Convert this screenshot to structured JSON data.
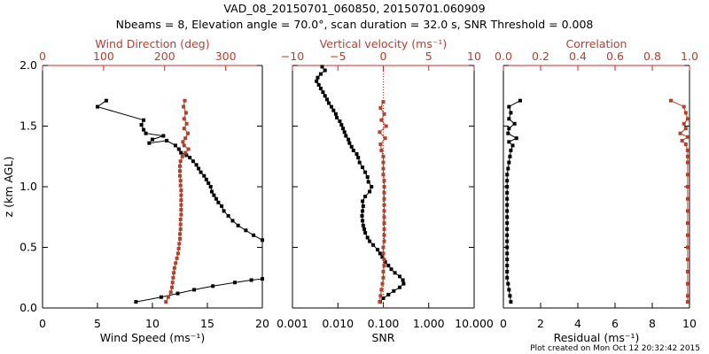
{
  "title_line1": "VAD_08_20150701_060850, 20150701.060909",
  "title_line2": "Nbeams = 8, Elevation angle = 70.0°, scan duration = 32.0 s, SNR Threshold = 0.008",
  "footer": "Plot created on Mon Oct 12 20:32:42 2015",
  "colors": {
    "primary": "#000000",
    "secondary": "#b5402a",
    "axis_top": "#e02020"
  },
  "chart_data": [
    {
      "type": "scatter",
      "panel": "wind",
      "ylabel": "z (km AGL)",
      "ylim": [
        0,
        2
      ],
      "yticks": [
        "0.0",
        "0.5",
        "1.0",
        "1.5",
        "2.0"
      ],
      "xlabel": "Wind Speed (ms⁻¹)",
      "xlim": [
        0,
        20
      ],
      "xticks": [
        "0",
        "5",
        "10",
        "15",
        "20"
      ],
      "x2label": "Wind Direction (deg)",
      "x2lim": [
        0,
        360
      ],
      "x2ticks": [
        "0",
        "100",
        "200",
        "300"
      ],
      "series": [
        {
          "role": "speed",
          "points": [
            [
              8.5,
              0.05
            ],
            [
              10.8,
              0.09
            ],
            [
              12.3,
              0.12
            ],
            [
              13.8,
              0.15
            ],
            [
              15.5,
              0.18
            ],
            [
              17.5,
              0.21
            ],
            [
              19.0,
              0.23
            ],
            [
              20,
              0.24
            ],
            [
              20,
              0.56
            ],
            [
              19.2,
              0.6
            ],
            [
              18.5,
              0.64
            ],
            [
              17.8,
              0.68
            ],
            [
              17.3,
              0.72
            ],
            [
              16.9,
              0.76
            ],
            [
              16.5,
              0.8
            ],
            [
              16.3,
              0.84
            ],
            [
              16.0,
              0.87
            ],
            [
              15.8,
              0.9
            ],
            [
              15.6,
              0.93
            ],
            [
              15.4,
              0.96
            ],
            [
              15.3,
              1.0
            ],
            [
              15.1,
              1.03
            ],
            [
              14.9,
              1.06
            ],
            [
              14.7,
              1.09
            ],
            [
              14.4,
              1.12
            ],
            [
              14.2,
              1.15
            ],
            [
              14.0,
              1.18
            ],
            [
              13.7,
              1.21
            ],
            [
              13.4,
              1.24
            ],
            [
              13.1,
              1.26
            ],
            [
              12.6,
              1.28
            ],
            [
              12.4,
              1.31
            ],
            [
              12.1,
              1.34
            ],
            [
              11.3,
              1.38
            ],
            [
              9.7,
              1.36
            ],
            [
              10.0,
              1.39
            ],
            [
              11.0,
              1.42
            ],
            [
              9.4,
              1.44
            ],
            [
              9.2,
              1.47
            ],
            [
              9.0,
              1.51
            ],
            [
              9.2,
              1.55
            ],
            [
              5.0,
              1.66
            ],
            [
              5.8,
              1.71
            ]
          ]
        },
        {
          "role": "direction",
          "points": [
            [
              202,
              0.05
            ],
            [
              206,
              0.09
            ],
            [
              210,
              0.13
            ],
            [
              212,
              0.17
            ],
            [
              213,
              0.21
            ],
            [
              214,
              0.25
            ],
            [
              215,
              0.29
            ],
            [
              216,
              0.33
            ],
            [
              218,
              0.37
            ],
            [
              220,
              0.41
            ],
            [
              222,
              0.45
            ],
            [
              223,
              0.49
            ],
            [
              224,
              0.53
            ],
            [
              225,
              0.57
            ],
            [
              225,
              0.61
            ],
            [
              226,
              0.65
            ],
            [
              226,
              0.69
            ],
            [
              226,
              0.73
            ],
            [
              227,
              0.77
            ],
            [
              227,
              0.81
            ],
            [
              227,
              0.85
            ],
            [
              227,
              0.89
            ],
            [
              227,
              0.93
            ],
            [
              227,
              0.97
            ],
            [
              226,
              1.01
            ],
            [
              226,
              1.05
            ],
            [
              225,
              1.09
            ],
            [
              225,
              1.13
            ],
            [
              225,
              1.17
            ],
            [
              226,
              1.21
            ],
            [
              229,
              1.25
            ],
            [
              234,
              1.28
            ],
            [
              239,
              1.31
            ],
            [
              232,
              1.34
            ],
            [
              230,
              1.37
            ],
            [
              234,
              1.4
            ],
            [
              238,
              1.44
            ],
            [
              232,
              1.48
            ],
            [
              236,
              1.52
            ],
            [
              232,
              1.56
            ],
            [
              235,
              1.61
            ],
            [
              231,
              1.66
            ],
            [
              233,
              1.71
            ]
          ]
        }
      ]
    },
    {
      "type": "scatter",
      "panel": "vertical",
      "xlabel": "SNR",
      "xscale": "log",
      "xlim": [
        0.001,
        10
      ],
      "xticks": [
        "0.001",
        "0.010",
        "0.100",
        "1.000",
        "10.000"
      ],
      "x2label": "Vertical velocity (ms⁻¹)",
      "x2lim": [
        -10,
        10
      ],
      "x2ticks": [
        "−10",
        "−5",
        "0",
        "5",
        "10"
      ],
      "ylim": [
        0,
        2
      ],
      "series": [
        {
          "role": "snr",
          "points": [
            [
              0.085,
              0.05
            ],
            [
              0.1,
              0.08
            ],
            [
              0.13,
              0.11
            ],
            [
              0.17,
              0.14
            ],
            [
              0.23,
              0.17
            ],
            [
              0.28,
              0.2
            ],
            [
              0.27,
              0.23
            ],
            [
              0.23,
              0.26
            ],
            [
              0.18,
              0.29
            ],
            [
              0.15,
              0.32
            ],
            [
              0.13,
              0.35
            ],
            [
              0.11,
              0.38
            ],
            [
              0.095,
              0.42
            ],
            [
              0.085,
              0.45
            ],
            [
              0.075,
              0.48
            ],
            [
              0.06,
              0.52
            ],
            [
              0.05,
              0.55
            ],
            [
              0.045,
              0.58
            ],
            [
              0.04,
              0.62
            ],
            [
              0.038,
              0.65
            ],
            [
              0.036,
              0.68
            ],
            [
              0.035,
              0.72
            ],
            [
              0.034,
              0.76
            ],
            [
              0.035,
              0.8
            ],
            [
              0.036,
              0.84
            ],
            [
              0.035,
              0.88
            ],
            [
              0.04,
              0.92
            ],
            [
              0.05,
              0.96
            ],
            [
              0.055,
              1.0
            ],
            [
              0.047,
              1.04
            ],
            [
              0.045,
              1.08
            ],
            [
              0.04,
              1.12
            ],
            [
              0.035,
              1.16
            ],
            [
              0.03,
              1.2
            ],
            [
              0.028,
              1.24
            ],
            [
              0.026,
              1.27
            ],
            [
              0.022,
              1.3
            ],
            [
              0.02,
              1.33
            ],
            [
              0.018,
              1.36
            ],
            [
              0.017,
              1.39
            ],
            [
              0.015,
              1.42
            ],
            [
              0.014,
              1.45
            ],
            [
              0.013,
              1.48
            ],
            [
              0.012,
              1.51
            ],
            [
              0.011,
              1.54
            ],
            [
              0.0095,
              1.57
            ],
            [
              0.009,
              1.6
            ],
            [
              0.008,
              1.63
            ],
            [
              0.0072,
              1.66
            ],
            [
              0.0063,
              1.69
            ],
            [
              0.0058,
              1.72
            ],
            [
              0.0052,
              1.75
            ],
            [
              0.0047,
              1.78
            ],
            [
              0.0042,
              1.81
            ],
            [
              0.0038,
              1.84
            ],
            [
              0.0034,
              1.87
            ],
            [
              0.0036,
              1.9
            ],
            [
              0.0042,
              1.93
            ],
            [
              0.0052,
              1.96
            ],
            [
              0.0045,
              1.99
            ]
          ]
        },
        {
          "role": "vertical_velocity",
          "points": [
            [
              -0.4,
              0.05
            ],
            [
              -0.3,
              0.1
            ],
            [
              -0.2,
              0.15
            ],
            [
              -0.1,
              0.2
            ],
            [
              0.0,
              0.25
            ],
            [
              0.0,
              0.3
            ],
            [
              0.1,
              0.35
            ],
            [
              0.1,
              0.4
            ],
            [
              0.0,
              0.45
            ],
            [
              0.0,
              0.5
            ],
            [
              0.1,
              0.55
            ],
            [
              0.1,
              0.6
            ],
            [
              0.1,
              0.65
            ],
            [
              0.1,
              0.7
            ],
            [
              0.1,
              0.75
            ],
            [
              0.1,
              0.8
            ],
            [
              0.1,
              0.85
            ],
            [
              0.1,
              0.9
            ],
            [
              0.1,
              0.95
            ],
            [
              0.1,
              1.0
            ],
            [
              0.1,
              1.05
            ],
            [
              0.0,
              1.1
            ],
            [
              0.0,
              1.15
            ],
            [
              0.0,
              1.2
            ],
            [
              0.0,
              1.25
            ],
            [
              -0.2,
              1.3
            ],
            [
              -0.3,
              1.35
            ],
            [
              0.2,
              1.4
            ],
            [
              -0.4,
              1.45
            ],
            [
              0.3,
              1.5
            ],
            [
              -0.2,
              1.55
            ],
            [
              0.1,
              1.6
            ],
            [
              -0.3,
              1.65
            ],
            [
              0.0,
              1.7
            ]
          ]
        }
      ]
    },
    {
      "type": "scatter",
      "panel": "residual",
      "xlabel": "Residual (ms⁻¹)",
      "xlim": [
        0,
        10
      ],
      "xticks": [
        "0",
        "2",
        "4",
        "6",
        "8",
        "10"
      ],
      "x2label": "Correlation",
      "x2lim": [
        0,
        1
      ],
      "x2ticks": [
        "0.0",
        "0.2",
        "0.4",
        "0.6",
        "0.8",
        "1.0"
      ],
      "ylim": [
        0,
        2
      ],
      "series": [
        {
          "role": "residual",
          "points": [
            [
              0.4,
              0.05
            ],
            [
              0.35,
              0.1
            ],
            [
              0.3,
              0.15
            ],
            [
              0.25,
              0.2
            ],
            [
              0.2,
              0.25
            ],
            [
              0.2,
              0.3
            ],
            [
              0.2,
              0.35
            ],
            [
              0.2,
              0.4
            ],
            [
              0.2,
              0.45
            ],
            [
              0.2,
              0.5
            ],
            [
              0.2,
              0.55
            ],
            [
              0.2,
              0.6
            ],
            [
              0.2,
              0.65
            ],
            [
              0.2,
              0.7
            ],
            [
              0.2,
              0.75
            ],
            [
              0.2,
              0.8
            ],
            [
              0.2,
              0.85
            ],
            [
              0.2,
              0.9
            ],
            [
              0.2,
              0.95
            ],
            [
              0.2,
              1.0
            ],
            [
              0.2,
              1.05
            ],
            [
              0.2,
              1.1
            ],
            [
              0.25,
              1.15
            ],
            [
              0.3,
              1.2
            ],
            [
              0.35,
              1.25
            ],
            [
              0.4,
              1.3
            ],
            [
              0.5,
              1.34
            ],
            [
              0.3,
              1.37
            ],
            [
              0.7,
              1.4
            ],
            [
              0.25,
              1.44
            ],
            [
              0.3,
              1.48
            ],
            [
              0.6,
              1.52
            ],
            [
              0.3,
              1.56
            ],
            [
              0.4,
              1.61
            ],
            [
              0.3,
              1.66
            ],
            [
              0.9,
              1.71
            ]
          ]
        },
        {
          "role": "correlation",
          "points": [
            [
              0.99,
              0.05
            ],
            [
              0.99,
              0.1
            ],
            [
              0.99,
              0.2
            ],
            [
              0.99,
              0.3
            ],
            [
              0.99,
              0.4
            ],
            [
              0.99,
              0.5
            ],
            [
              0.99,
              0.6
            ],
            [
              0.99,
              0.7
            ],
            [
              0.99,
              0.8
            ],
            [
              0.99,
              0.9
            ],
            [
              0.99,
              1.0
            ],
            [
              0.99,
              1.1
            ],
            [
              0.99,
              1.2
            ],
            [
              0.99,
              1.25
            ],
            [
              0.99,
              1.3
            ],
            [
              0.98,
              1.35
            ],
            [
              0.96,
              1.38
            ],
            [
              0.99,
              1.41
            ],
            [
              0.95,
              1.44
            ],
            [
              0.98,
              1.48
            ],
            [
              0.97,
              1.52
            ],
            [
              0.99,
              1.56
            ],
            [
              0.98,
              1.61
            ],
            [
              0.97,
              1.66
            ],
            [
              0.9,
              1.71
            ]
          ]
        }
      ]
    }
  ]
}
